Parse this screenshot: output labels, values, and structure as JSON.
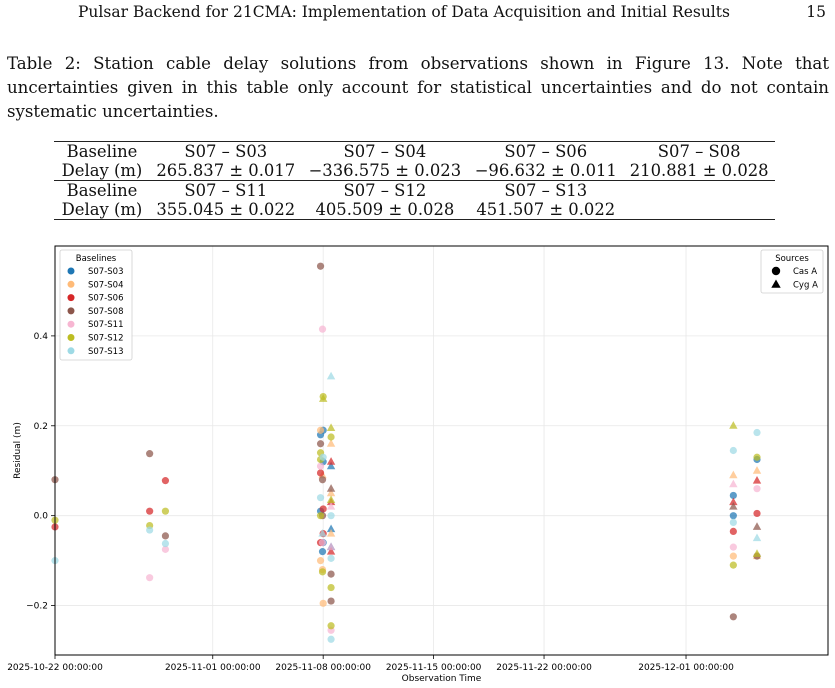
{
  "header": {
    "title": "Pulsar Backend for 21CMA: Implementation of Data Acquisition and Initial Results",
    "page_number": "15"
  },
  "caption": "Table 2:  Station cable delay solutions from observations shown in Figure 13. Note that uncertainties given in this table only account for statistical uncertainties and do not contain systematic uncertainties.",
  "table": {
    "rows": [
      [
        "Baseline",
        "S07 – S03",
        "S07 – S04",
        "S07 – S06",
        "S07 – S08"
      ],
      [
        "Delay (m)",
        "265.837 ± 0.017",
        "−336.575 ± 0.023",
        "−96.632 ± 0.011",
        "210.881 ± 0.028"
      ],
      [
        "Baseline",
        "S07 – S11",
        "S07 – S12",
        "S07 – S13",
        ""
      ],
      [
        "Delay (m)",
        "355.045 ± 0.022",
        "405.509 ± 0.028",
        "451.507 ± 0.022",
        ""
      ]
    ]
  },
  "chart_data": {
    "type": "scatter",
    "xlabel": "Observation Time",
    "ylabel": "Residual (m)",
    "xlim": [
      "2025-10-22",
      "2025-12-10"
    ],
    "ylim": [
      -0.31,
      0.6
    ],
    "x_ticks": [
      "2025-10-22 00:00:00",
      "2025-11-01 00:00:00",
      "2025-11-08 00:00:00",
      "2025-11-15 00:00:00",
      "2025-11-22 00:00:00",
      "2025-12-01 00:00:00"
    ],
    "y_ticks": [
      -0.2,
      0.0,
      0.2,
      0.4
    ],
    "y_tick_labels": [
      "−0.2",
      "0.0",
      "0.2",
      "0.4"
    ],
    "grid": true,
    "legend_baselines": {
      "title": "Baselines",
      "placement": "top-left",
      "entries": [
        "S07-S03",
        "S07-S04",
        "S07-S06",
        "S07-S08",
        "S07-S11",
        "S07-S12",
        "S07-S13"
      ]
    },
    "legend_sources": {
      "title": "Sources",
      "placement": "top-right",
      "entries": [
        {
          "label": "Cas A",
          "marker": "circle"
        },
        {
          "label": "Cyg A",
          "marker": "triangle"
        }
      ]
    },
    "series": [
      {
        "name": "S07-S03",
        "color": "#1f77b4",
        "points": [
          {
            "x": "2025-11-07T20:00",
            "y": 0.18,
            "m": "circle"
          },
          {
            "x": "2025-11-07T20:00",
            "y": 0.01,
            "m": "circle"
          },
          {
            "x": "2025-11-07T23:00",
            "y": -0.08,
            "m": "circle"
          },
          {
            "x": "2025-11-08T00:00",
            "y": 0.19,
            "m": "circle"
          },
          {
            "x": "2025-11-08T00:00",
            "y": 0.12,
            "m": "circle"
          },
          {
            "x": "2025-11-08T00:00",
            "y": -0.06,
            "m": "circle"
          },
          {
            "x": "2025-11-08T12:00",
            "y": 0.11,
            "m": "triangle"
          },
          {
            "x": "2025-11-08T12:00",
            "y": -0.03,
            "m": "triangle"
          },
          {
            "x": "2025-11-08T12:00",
            "y": -0.07,
            "m": "triangle"
          },
          {
            "x": "2025-12-04T00:00",
            "y": 0.045,
            "m": "circle"
          },
          {
            "x": "2025-12-04T00:00",
            "y": 0.0,
            "m": "circle"
          },
          {
            "x": "2025-12-05T12:00",
            "y": 0.125,
            "m": "circle"
          }
        ]
      },
      {
        "name": "S07-S04",
        "color": "#ffbb78",
        "points": [
          {
            "x": "2025-11-07T20:00",
            "y": 0.19,
            "m": "circle"
          },
          {
            "x": "2025-11-07T20:00",
            "y": -0.1,
            "m": "circle"
          },
          {
            "x": "2025-11-07T23:00",
            "y": 0.09,
            "m": "triangle"
          },
          {
            "x": "2025-11-07T23:00",
            "y": -0.12,
            "m": "circle"
          },
          {
            "x": "2025-11-08T00:00",
            "y": -0.195,
            "m": "circle"
          },
          {
            "x": "2025-11-08T12:00",
            "y": 0.16,
            "m": "triangle"
          },
          {
            "x": "2025-11-08T12:00",
            "y": 0.05,
            "m": "triangle"
          },
          {
            "x": "2025-11-08T12:00",
            "y": -0.04,
            "m": "triangle"
          },
          {
            "x": "2025-12-04T00:00",
            "y": 0.09,
            "m": "triangle"
          },
          {
            "x": "2025-12-04T00:00",
            "y": -0.09,
            "m": "circle"
          },
          {
            "x": "2025-12-05T12:00",
            "y": 0.1,
            "m": "triangle"
          },
          {
            "x": "2025-12-05T12:00",
            "y": -0.09,
            "m": "triangle"
          }
        ]
      },
      {
        "name": "S07-S06",
        "color": "#d62728",
        "points": [
          {
            "x": "2025-10-22T00:00",
            "y": -0.025,
            "m": "circle"
          },
          {
            "x": "2025-10-28T00:00",
            "y": 0.01,
            "m": "circle"
          },
          {
            "x": "2025-10-29T00:00",
            "y": 0.078,
            "m": "circle"
          },
          {
            "x": "2025-11-07T20:00",
            "y": 0.095,
            "m": "circle"
          },
          {
            "x": "2025-11-07T20:00",
            "y": -0.06,
            "m": "circle"
          },
          {
            "x": "2025-11-08T00:00",
            "y": 0.015,
            "m": "circle"
          },
          {
            "x": "2025-11-08T00:00",
            "y": -0.04,
            "m": "circle"
          },
          {
            "x": "2025-11-08T12:00",
            "y": 0.12,
            "m": "triangle"
          },
          {
            "x": "2025-11-08T12:00",
            "y": 0.03,
            "m": "triangle"
          },
          {
            "x": "2025-11-08T12:00",
            "y": -0.08,
            "m": "triangle"
          },
          {
            "x": "2025-12-04T00:00",
            "y": 0.03,
            "m": "triangle"
          },
          {
            "x": "2025-12-04T00:00",
            "y": -0.035,
            "m": "circle"
          },
          {
            "x": "2025-12-05T12:00",
            "y": 0.078,
            "m": "triangle"
          },
          {
            "x": "2025-12-05T12:00",
            "y": 0.005,
            "m": "circle"
          }
        ]
      },
      {
        "name": "S07-S08",
        "color": "#8c564b",
        "points": [
          {
            "x": "2025-10-22T00:00",
            "y": 0.08,
            "m": "circle"
          },
          {
            "x": "2025-10-28T00:00",
            "y": 0.138,
            "m": "circle"
          },
          {
            "x": "2025-10-29T00:00",
            "y": -0.045,
            "m": "circle"
          },
          {
            "x": "2025-11-07T20:00",
            "y": 0.555,
            "m": "circle"
          },
          {
            "x": "2025-11-07T20:00",
            "y": 0.16,
            "m": "circle"
          },
          {
            "x": "2025-11-07T23:00",
            "y": 0.08,
            "m": "circle"
          },
          {
            "x": "2025-11-07T23:00",
            "y": 0.0,
            "m": "circle"
          },
          {
            "x": "2025-11-08T12:00",
            "y": 0.06,
            "m": "triangle"
          },
          {
            "x": "2025-11-08T12:00",
            "y": -0.13,
            "m": "circle"
          },
          {
            "x": "2025-11-08T12:00",
            "y": -0.19,
            "m": "circle"
          },
          {
            "x": "2025-12-04T00:00",
            "y": -0.225,
            "m": "circle"
          },
          {
            "x": "2025-12-04T00:00",
            "y": 0.02,
            "m": "triangle"
          },
          {
            "x": "2025-12-05T12:00",
            "y": -0.09,
            "m": "circle"
          },
          {
            "x": "2025-12-05T12:00",
            "y": -0.025,
            "m": "triangle"
          }
        ]
      },
      {
        "name": "S07-S11",
        "color": "#f7b6d2",
        "points": [
          {
            "x": "2025-10-28T00:00",
            "y": -0.138,
            "m": "circle"
          },
          {
            "x": "2025-10-29T00:00",
            "y": -0.075,
            "m": "circle"
          },
          {
            "x": "2025-11-07T20:00",
            "y": 0.11,
            "m": "circle"
          },
          {
            "x": "2025-11-07T23:00",
            "y": 0.415,
            "m": "circle"
          },
          {
            "x": "2025-11-07T23:00",
            "y": -0.06,
            "m": "circle"
          },
          {
            "x": "2025-11-08T12:00",
            "y": 0.02,
            "m": "triangle"
          },
          {
            "x": "2025-11-08T12:00",
            "y": -0.07,
            "m": "triangle"
          },
          {
            "x": "2025-11-08T12:00",
            "y": -0.255,
            "m": "circle"
          },
          {
            "x": "2025-12-04T00:00",
            "y": 0.07,
            "m": "triangle"
          },
          {
            "x": "2025-12-04T00:00",
            "y": -0.07,
            "m": "circle"
          },
          {
            "x": "2025-12-05T12:00",
            "y": 0.06,
            "m": "circle"
          }
        ]
      },
      {
        "name": "S07-S12",
        "color": "#bcbd22",
        "points": [
          {
            "x": "2025-10-22T00:00",
            "y": -0.01,
            "m": "circle"
          },
          {
            "x": "2025-10-28T00:00",
            "y": -0.022,
            "m": "circle"
          },
          {
            "x": "2025-10-29T00:00",
            "y": 0.01,
            "m": "circle"
          },
          {
            "x": "2025-11-07T20:00",
            "y": 0.14,
            "m": "circle"
          },
          {
            "x": "2025-11-07T20:00",
            "y": 0.125,
            "m": "circle"
          },
          {
            "x": "2025-11-07T20:00",
            "y": 0.0,
            "m": "circle"
          },
          {
            "x": "2025-11-07T23:00",
            "y": -0.125,
            "m": "circle"
          },
          {
            "x": "2025-11-08T00:00",
            "y": 0.26,
            "m": "triangle"
          },
          {
            "x": "2025-11-08T00:00",
            "y": 0.265,
            "m": "circle"
          },
          {
            "x": "2025-11-08T12:00",
            "y": 0.195,
            "m": "triangle"
          },
          {
            "x": "2025-11-08T12:00",
            "y": 0.175,
            "m": "circle"
          },
          {
            "x": "2025-11-08T12:00",
            "y": 0.035,
            "m": "triangle"
          },
          {
            "x": "2025-11-08T12:00",
            "y": -0.16,
            "m": "circle"
          },
          {
            "x": "2025-11-08T12:00",
            "y": -0.245,
            "m": "circle"
          },
          {
            "x": "2025-12-04T00:00",
            "y": 0.2,
            "m": "triangle"
          },
          {
            "x": "2025-12-04T00:00",
            "y": -0.11,
            "m": "circle"
          },
          {
            "x": "2025-12-05T12:00",
            "y": 0.13,
            "m": "circle"
          },
          {
            "x": "2025-12-05T12:00",
            "y": -0.085,
            "m": "triangle"
          }
        ]
      },
      {
        "name": "S07-S13",
        "color": "#9edae5",
        "points": [
          {
            "x": "2025-10-22T00:00",
            "y": -0.1,
            "m": "circle"
          },
          {
            "x": "2025-10-28T00:00",
            "y": -0.032,
            "m": "circle"
          },
          {
            "x": "2025-10-29T00:00",
            "y": -0.062,
            "m": "circle"
          },
          {
            "x": "2025-11-07T20:00",
            "y": 0.04,
            "m": "circle"
          },
          {
            "x": "2025-11-07T23:00",
            "y": -0.04,
            "m": "triangle"
          },
          {
            "x": "2025-11-08T00:00",
            "y": 0.13,
            "m": "circle"
          },
          {
            "x": "2025-11-08T12:00",
            "y": 0.31,
            "m": "triangle"
          },
          {
            "x": "2025-11-08T12:00",
            "y": 0.0,
            "m": "circle"
          },
          {
            "x": "2025-11-08T12:00",
            "y": -0.095,
            "m": "circle"
          },
          {
            "x": "2025-11-08T12:00",
            "y": -0.275,
            "m": "circle"
          },
          {
            "x": "2025-12-04T00:00",
            "y": 0.145,
            "m": "circle"
          },
          {
            "x": "2025-12-04T00:00",
            "y": -0.015,
            "m": "circle"
          },
          {
            "x": "2025-12-05T12:00",
            "y": 0.185,
            "m": "circle"
          },
          {
            "x": "2025-12-05T12:00",
            "y": -0.05,
            "m": "triangle"
          }
        ]
      }
    ]
  }
}
